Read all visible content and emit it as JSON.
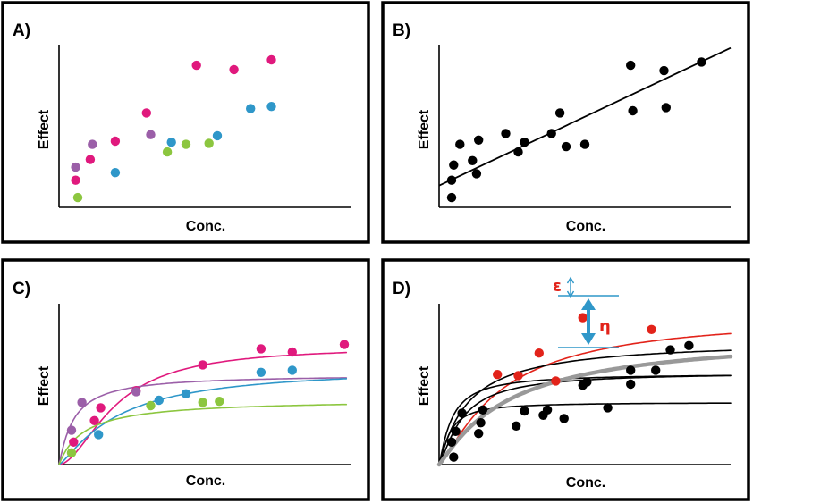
{
  "colors": {
    "magenta": "#e0197d",
    "purple": "#9b5fa8",
    "blue": "#2f97c9",
    "green": "#8cc63f",
    "black": "#000000",
    "red": "#e2231a",
    "grey": "#999999",
    "annotation_blue": "#2f97c9"
  },
  "panels": [
    {
      "label": "A)",
      "xlabel": "Conc.",
      "ylabel": "Effect",
      "points": [
        {
          "c": "magenta",
          "x": [
            0.4,
            0.75,
            1.35,
            2.1,
            3.3,
            4.2,
            5.1
          ],
          "y": [
            1.25,
            2.2,
            3.05,
            4.35,
            6.55,
            6.35,
            6.8
          ]
        },
        {
          "c": "purple",
          "x": [
            0.4,
            0.8,
            2.2
          ],
          "y": [
            1.85,
            2.9,
            3.35
          ]
        },
        {
          "c": "blue",
          "x": [
            1.35,
            2.7,
            3.8,
            4.6
          ],
          "y": [
            1.6,
            3.0,
            3.3,
            4.55
          ]
        },
        {
          "c": "green",
          "x": [
            0.45,
            2.6,
            3.05
          ],
          "y": [
            0.45,
            2.55,
            2.9
          ]
        },
        {
          "c": "blue",
          "x": [
            5.1
          ],
          "y": [
            4.65
          ]
        },
        {
          "c": "green",
          "x": [
            3.6
          ],
          "y": [
            2.95
          ]
        }
      ],
      "curves": []
    },
    {
      "label": "B)",
      "xlabel": "Conc.",
      "ylabel": "Effect",
      "points": [
        {
          "c": "black",
          "x": [
            0.3,
            0.3,
            0.35,
            0.5,
            0.8,
            0.9,
            0.95,
            1.6,
            1.9,
            2.05,
            2.7,
            2.9,
            3.05,
            3.5,
            4.6,
            4.65,
            5.4,
            5.45,
            6.3
          ],
          "y": [
            0.45,
            1.25,
            1.95,
            2.9,
            2.15,
            1.55,
            3.1,
            3.4,
            2.55,
            3.0,
            3.4,
            4.35,
            2.8,
            2.9,
            6.55,
            4.45,
            6.3,
            4.6,
            6.7
          ]
        }
      ],
      "lines": [
        {
          "c": "black",
          "x": [
            0.0,
            7.0
          ],
          "y": [
            1.0,
            7.35
          ]
        }
      ],
      "curves": []
    },
    {
      "label": "C)",
      "xlabel": "Conc.",
      "ylabel": "Effect",
      "points": [
        {
          "c": "magenta",
          "x": [
            0.35,
            0.85,
            1.0,
            1.85,
            3.45,
            4.85,
            5.6,
            6.85
          ],
          "y": [
            1.05,
            2.05,
            2.65,
            3.45,
            4.65,
            5.4,
            5.25,
            5.6
          ]
        },
        {
          "c": "purple",
          "x": [
            0.3,
            0.55,
            1.85
          ],
          "y": [
            1.6,
            2.9,
            3.4
          ]
        },
        {
          "c": "blue",
          "x": [
            0.95,
            2.4,
            3.05,
            4.85,
            5.6
          ],
          "y": [
            1.4,
            3.0,
            3.3,
            4.3,
            4.4
          ]
        },
        {
          "c": "green",
          "x": [
            0.3,
            2.2,
            3.45
          ],
          "y": [
            0.55,
            2.75,
            2.9
          ]
        },
        {
          "c": "green",
          "x": [
            3.85
          ],
          "y": [
            2.95
          ]
        }
      ],
      "curves": [
        {
          "c": "magenta",
          "emax": 5.5,
          "ec50": 1.35,
          "n": 1.8,
          "xmax": 6.9
        },
        {
          "c": "purple",
          "emax": 4.2,
          "ec50": 0.35,
          "n": 1.1,
          "xmax": 6.9
        },
        {
          "c": "blue",
          "emax": 4.55,
          "ec50": 1.4,
          "n": 1.25,
          "xmax": 6.9
        },
        {
          "c": "green",
          "emax": 3.05,
          "ec50": 0.6,
          "n": 1.0,
          "xmax": 6.9
        }
      ]
    },
    {
      "label": "D)",
      "xlabel": "Conc.",
      "ylabel": "Effect",
      "points": [
        {
          "c": "black",
          "x": [
            0.35,
            0.3,
            0.4,
            0.55,
            0.95,
            1.0,
            1.05,
            1.85,
            2.05,
            2.5,
            2.6,
            3.0,
            3.45,
            3.55,
            4.05,
            4.6,
            4.6,
            5.2,
            5.55,
            6.0
          ],
          "y": [
            0.35,
            1.05,
            1.55,
            2.4,
            1.45,
            1.95,
            2.55,
            1.8,
            2.5,
            2.3,
            2.55,
            2.15,
            3.7,
            3.85,
            2.65,
            3.75,
            4.4,
            4.4,
            5.35,
            5.55
          ]
        },
        {
          "c": "red",
          "x": [
            1.4,
            1.9,
            2.4,
            2.8,
            3.45,
            5.1
          ],
          "y": [
            4.2,
            4.15,
            5.2,
            3.9,
            6.85,
            6.3
          ]
        }
      ],
      "curves": [
        {
          "c": "red",
          "emax": 7.0,
          "ec50": 1.5,
          "n": 1.25,
          "xmax": 7.0,
          "w": 1.6
        },
        {
          "c": "black",
          "emax": 5.8,
          "ec50": 0.7,
          "n": 1.05,
          "xmax": 7.0,
          "w": 1.6
        },
        {
          "c": "black",
          "emax": 4.25,
          "ec50": 0.3,
          "n": 1.2,
          "xmax": 7.0,
          "w": 1.6
        },
        {
          "c": "black",
          "emax": 4.3,
          "ec50": 0.55,
          "n": 1.3,
          "xmax": 7.0,
          "w": 1.6
        },
        {
          "c": "black",
          "emax": 2.9,
          "ec50": 0.25,
          "n": 1.35,
          "xmax": 7.0,
          "w": 1.6
        },
        {
          "c": "grey",
          "emax": 6.1,
          "ec50": 1.7,
          "n": 1.1,
          "xmax": 7.0,
          "w": 4.5
        }
      ],
      "annotations": {
        "epsilon": "ε",
        "eta": "η"
      }
    }
  ]
}
